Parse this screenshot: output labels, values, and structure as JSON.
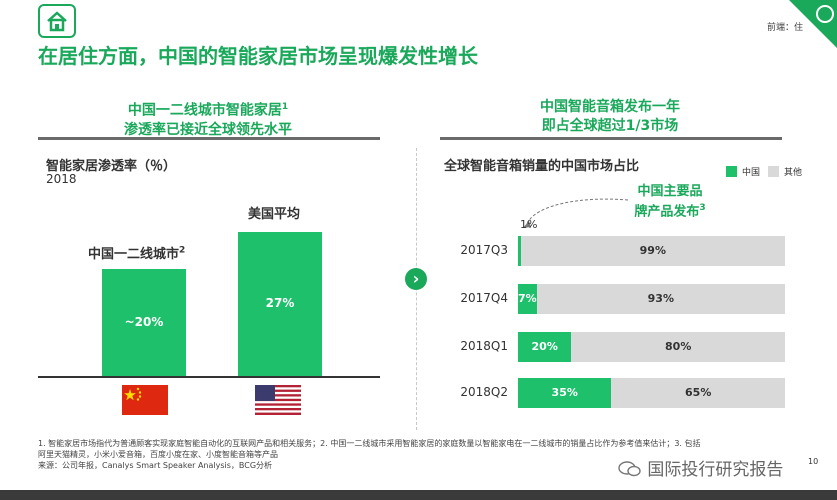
{
  "header": {
    "corner_label": "前端：住",
    "page_title": "在居住方面，中国的智能家居市场呈现爆发性增长",
    "page_number": "10"
  },
  "left_panel": {
    "heading_line1": "中国一二线城市智能家居",
    "heading_sup": "1",
    "heading_line2": "渗透率已接近全球领先水平",
    "chart_title": "智能家居渗透率（％）",
    "year": "2018"
  },
  "right_panel": {
    "heading_line1": "中国智能音箱发布一年",
    "heading_line2": "即占全球超过1/3市场",
    "chart_title": "全球智能音箱销量的中国市场占比",
    "annotation_line1": "中国主要品",
    "annotation_line2": "牌产品发布",
    "annotation_sup": "3"
  },
  "chart_data": [
    {
      "type": "bar",
      "title": "智能家居渗透率（％）",
      "subtitle": "2018",
      "categories": [
        "中国一二线城市",
        "美国平均"
      ],
      "category_sups": [
        "2",
        ""
      ],
      "values": [
        20,
        27
      ],
      "value_labels": [
        "~20%",
        "27%"
      ],
      "flag_icons": [
        "china-flag-icon",
        "usa-flag-icon"
      ],
      "ylim": [
        0,
        30
      ],
      "grid": false
    },
    {
      "type": "bar",
      "orientation": "horizontal",
      "stacked": true,
      "title": "全球智能音箱销量的中国市场占比",
      "categories": [
        "2017Q3",
        "2017Q4",
        "2018Q1",
        "2018Q2"
      ],
      "series": [
        {
          "name": "中国",
          "values": [
            1,
            7,
            20,
            35
          ],
          "labels": [
            "1%",
            "7%",
            "20%",
            "35%"
          ],
          "color": "#1fc06c"
        },
        {
          "name": "其他",
          "values": [
            99,
            93,
            80,
            65
          ],
          "labels": [
            "99%",
            "93%",
            "80%",
            "65%"
          ],
          "color": "#d9d9d9"
        }
      ],
      "xlim": [
        0,
        100
      ],
      "legend": "top-right",
      "grid": false
    }
  ],
  "footer": {
    "note_line1": "1. 智能家居市场指代为普通顾客实现家庭智能自动化的互联网产品和相关服务；2. 中国一二线城市采用智能家居的家庭数量以智能家电在一二线城市的销量占比作为参考值来估计；3. 包括",
    "note_line2": "阿里天猫精灵，小米小爱音箱，百度小度在家、小度智能音箱等产品",
    "source": "来源：公司年报，Canalys Smart Speaker Analysis，BCG分析",
    "watermark": "国际投行研究报告"
  },
  "colors": {
    "accent": "#1aa85b",
    "bar_green": "#1fc06c",
    "bar_grey": "#d9d9d9"
  }
}
